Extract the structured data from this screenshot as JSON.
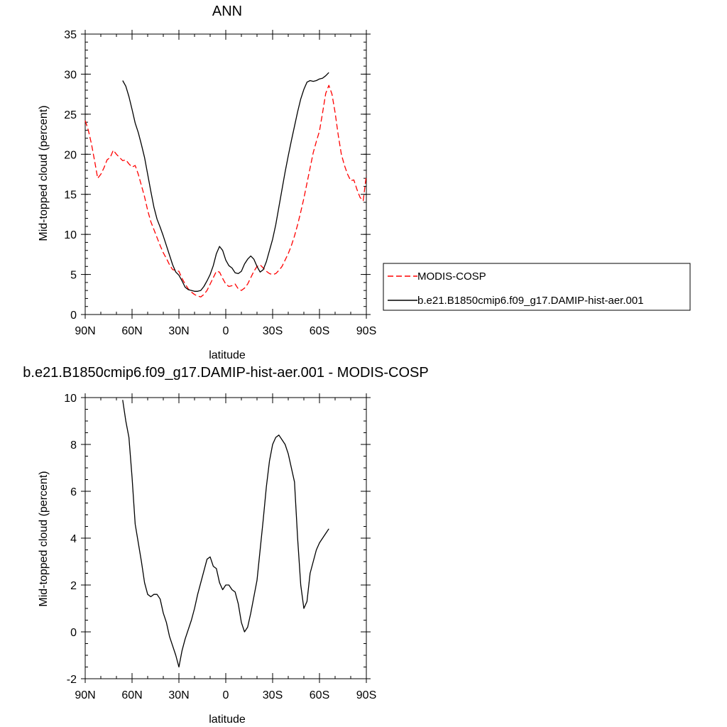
{
  "chart_data": [
    {
      "type": "line",
      "title": "ANN",
      "xlabel": "latitude",
      "ylabel": "Mid-topped cloud (percent)",
      "xlim": [
        90,
        -90
      ],
      "ylim": [
        0,
        35
      ],
      "x_ticks": [
        {
          "v": 90,
          "label": "90N"
        },
        {
          "v": 60,
          "label": "60N"
        },
        {
          "v": 30,
          "label": "30N"
        },
        {
          "v": 0,
          "label": "0"
        },
        {
          "v": -30,
          "label": "30S"
        },
        {
          "v": -60,
          "label": "60S"
        },
        {
          "v": -90,
          "label": "90S"
        }
      ],
      "y_ticks": [
        0,
        5,
        10,
        15,
        20,
        25,
        30,
        35
      ],
      "legend_position": "right",
      "series": [
        {
          "name": "MODIS-COSP",
          "color": "#ff0000",
          "dash": "dashed",
          "x": [
            90,
            88,
            86,
            84,
            82,
            80,
            78,
            76,
            74,
            72,
            70,
            68,
            66,
            64,
            62,
            60,
            58,
            56,
            54,
            52,
            50,
            48,
            46,
            44,
            42,
            40,
            38,
            36,
            34,
            32,
            30,
            28,
            26,
            24,
            22,
            20,
            18,
            16,
            14,
            12,
            10,
            8,
            6,
            4,
            2,
            0,
            -2,
            -4,
            -6,
            -8,
            -10,
            -12,
            -14,
            -16,
            -18,
            -20,
            -22,
            -24,
            -26,
            -28,
            -30,
            -32,
            -34,
            -36,
            -38,
            -40,
            -42,
            -44,
            -46,
            -48,
            -50,
            -52,
            -54,
            -56,
            -58,
            -60,
            -62,
            -64,
            -66,
            -68,
            -70,
            -72,
            -74,
            -76,
            -78,
            -80,
            -82,
            -84,
            -86,
            -88,
            -90
          ],
          "y": [
            24.2,
            23.0,
            21.3,
            19.2,
            17.0,
            17.5,
            18.3,
            19.3,
            19.6,
            20.5,
            20.0,
            19.6,
            19.2,
            19.3,
            18.8,
            18.4,
            18.6,
            17.5,
            16.1,
            14.7,
            13.0,
            11.6,
            10.6,
            9.6,
            8.6,
            7.7,
            7.0,
            6.2,
            5.6,
            5.5,
            5.4,
            4.5,
            3.8,
            3.2,
            2.8,
            2.5,
            2.3,
            2.2,
            2.5,
            3.0,
            3.8,
            4.6,
            5.4,
            5.3,
            4.5,
            3.8,
            3.5,
            3.6,
            3.8,
            3.2,
            3.0,
            3.3,
            3.8,
            4.6,
            5.4,
            6.0,
            6.2,
            5.8,
            5.4,
            5.1,
            5.0,
            5.1,
            5.5,
            6.0,
            6.8,
            7.6,
            8.6,
            9.8,
            11.2,
            12.8,
            14.5,
            16.4,
            18.3,
            20.2,
            21.6,
            22.9,
            25.2,
            27.6,
            28.6,
            27.5,
            25.2,
            22.4,
            20.0,
            18.6,
            17.5,
            16.7,
            16.8,
            15.6,
            14.6,
            14.2,
            17.4
          ]
        },
        {
          "name": "b.e21.B1850cmip6.f09_g17.DAMIP-hist-aer.001",
          "color": "#000000",
          "dash": "solid",
          "x": [
            66,
            64,
            62,
            60,
            58,
            56,
            54,
            52,
            50,
            48,
            46,
            44,
            42,
            40,
            38,
            36,
            34,
            32,
            30,
            28,
            26,
            24,
            22,
            20,
            18,
            16,
            14,
            12,
            10,
            8,
            6,
            4,
            2,
            0,
            -2,
            -4,
            -6,
            -8,
            -10,
            -12,
            -14,
            -16,
            -18,
            -20,
            -22,
            -24,
            -26,
            -28,
            -30,
            -32,
            -34,
            -36,
            -38,
            -40,
            -42,
            -44,
            -46,
            -48,
            -50,
            -52,
            -54,
            -56,
            -58,
            -60,
            -62,
            -64,
            -66
          ],
          "y": [
            29.2,
            28.5,
            27.2,
            25.6,
            23.9,
            22.7,
            21.2,
            19.6,
            17.5,
            15.4,
            13.4,
            11.9,
            10.9,
            9.8,
            8.6,
            7.4,
            6.2,
            5.3,
            4.9,
            4.2,
            3.4,
            3.1,
            3.0,
            2.9,
            2.9,
            3.0,
            3.5,
            4.2,
            5.0,
            6.1,
            7.6,
            8.5,
            8.0,
            6.8,
            6.1,
            5.8,
            5.2,
            5.1,
            5.4,
            6.3,
            6.9,
            7.3,
            6.9,
            6.0,
            5.3,
            5.6,
            6.6,
            8.0,
            9.4,
            11.2,
            13.4,
            15.6,
            17.8,
            19.8,
            21.7,
            23.5,
            25.3,
            26.9,
            28.1,
            29.0,
            29.2,
            29.1,
            29.2,
            29.4,
            29.5,
            29.8,
            30.2
          ]
        }
      ]
    },
    {
      "type": "line",
      "title": "b.e21.B1850cmip6.f09_g17.DAMIP-hist-aer.001 - MODIS-COSP",
      "xlabel": "latitude",
      "ylabel": "Mid-topped cloud (percent)",
      "xlim": [
        90,
        -90
      ],
      "ylim": [
        -2,
        10
      ],
      "x_ticks": [
        {
          "v": 90,
          "label": "90N"
        },
        {
          "v": 60,
          "label": "60N"
        },
        {
          "v": 30,
          "label": "30N"
        },
        {
          "v": 0,
          "label": "0"
        },
        {
          "v": -30,
          "label": "30S"
        },
        {
          "v": -60,
          "label": "60S"
        },
        {
          "v": -90,
          "label": "90S"
        }
      ],
      "y_ticks": [
        -2,
        0,
        2,
        4,
        6,
        8,
        10
      ],
      "series": [
        {
          "color": "#000000",
          "dash": "solid",
          "x": [
            66,
            64,
            62,
            60,
            58,
            56,
            54,
            52,
            50,
            48,
            46,
            44,
            42,
            40,
            38,
            36,
            34,
            32,
            30,
            28,
            26,
            24,
            22,
            20,
            18,
            16,
            14,
            12,
            10,
            8,
            6,
            4,
            2,
            0,
            -2,
            -4,
            -6,
            -8,
            -10,
            -12,
            -14,
            -16,
            -18,
            -20,
            -22,
            -24,
            -26,
            -28,
            -30,
            -32,
            -34,
            -36,
            -38,
            -40,
            -42,
            -44,
            -46,
            -48,
            -50,
            -52,
            -54,
            -56,
            -58,
            -60,
            -62,
            -64,
            -66
          ],
          "y": [
            9.9,
            9.0,
            8.3,
            6.6,
            4.6,
            3.8,
            3.0,
            2.1,
            1.6,
            1.5,
            1.6,
            1.6,
            1.4,
            0.8,
            0.4,
            -0.2,
            -0.6,
            -1.0,
            -1.5,
            -0.8,
            -0.3,
            0.1,
            0.5,
            1.0,
            1.6,
            2.1,
            2.6,
            3.1,
            3.2,
            2.8,
            2.7,
            2.1,
            1.8,
            2.0,
            2.0,
            1.8,
            1.7,
            1.2,
            0.4,
            -0.0,
            0.2,
            0.8,
            1.5,
            2.2,
            3.5,
            4.8,
            6.2,
            7.3,
            8.0,
            8.3,
            8.4,
            8.2,
            8.0,
            7.6,
            7.0,
            6.4,
            4.0,
            2.0,
            1.0,
            1.3,
            2.5,
            3.0,
            3.5,
            3.8,
            4.0,
            4.2,
            4.4
          ]
        }
      ]
    }
  ]
}
